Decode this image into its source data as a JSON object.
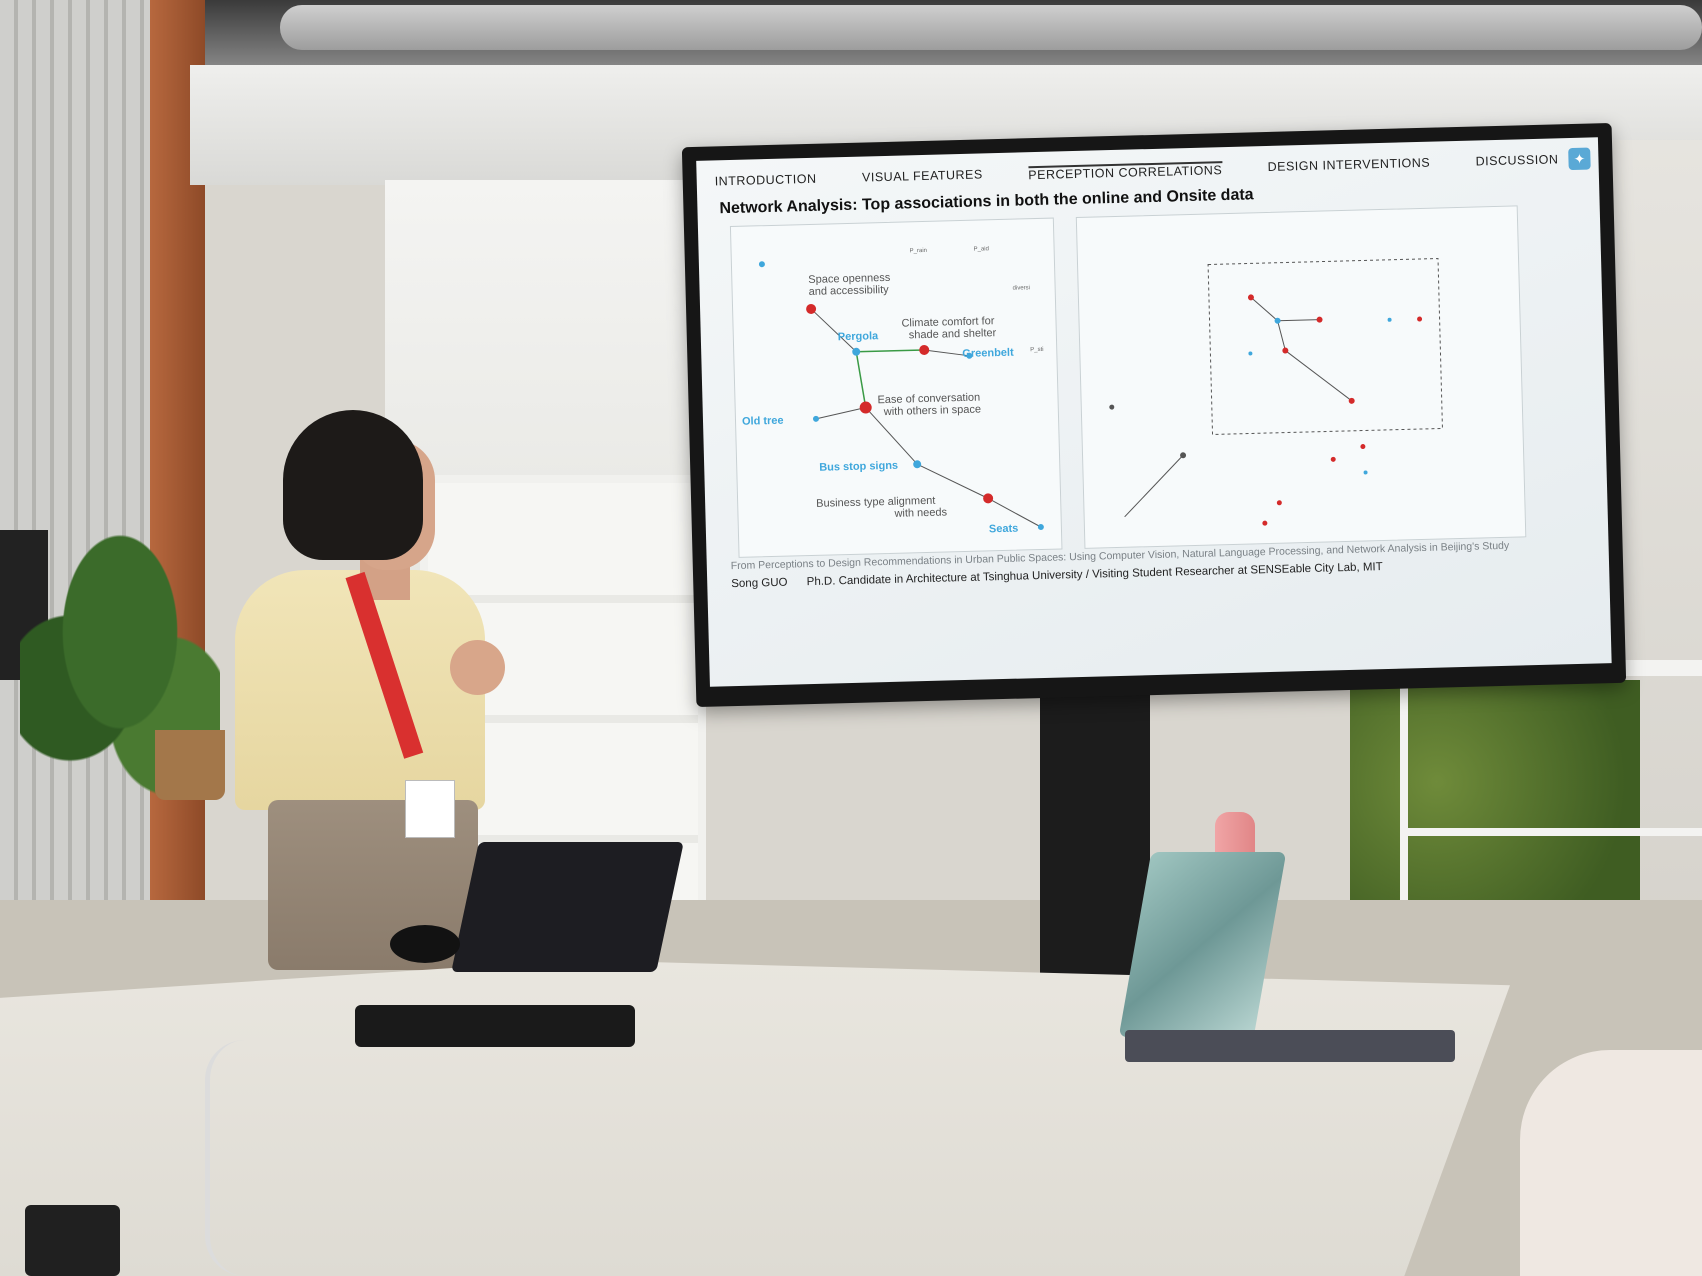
{
  "slide": {
    "nav": [
      "INTRODUCTION",
      "VISUAL FEATURES",
      "PERCEPTION CORRELATIONS",
      "DESIGN INTERVENTIONS",
      "DISCUSSION"
    ],
    "title": "Network Analysis:  Top associations in both the online and Onsite data",
    "left_network": {
      "perceptions": [
        "Space openness and accessibility",
        "Climate comfort for shade and shelter",
        "Ease of conversation with others in space",
        "Business type alignment with needs"
      ],
      "interventions": [
        "Pergola",
        "Greenbelt",
        "Old tree",
        "Bus stop signs",
        "Seats"
      ],
      "small_labels": [
        "P_rain",
        "P_aid",
        "diversi",
        "P_sti"
      ]
    },
    "footer_citation": "From Perceptions to Design Recommendations in Urban Public Spaces: Using Computer Vision, Natural Language Processing, and Network Analysis in Beijing's Study",
    "footer_author": "Song GUO",
    "footer_affiliation": "Ph.D. Candidate in Architecture at Tsinghua University / Visiting Student Researcher at SENSEable City Lab, MIT"
  },
  "colors": {
    "node_red": "#d42a2a",
    "node_blue": "#3fa7dc",
    "label_blue": "#3fa7dc",
    "edge_green": "#3a9a45",
    "edge_gray": "#555555"
  }
}
